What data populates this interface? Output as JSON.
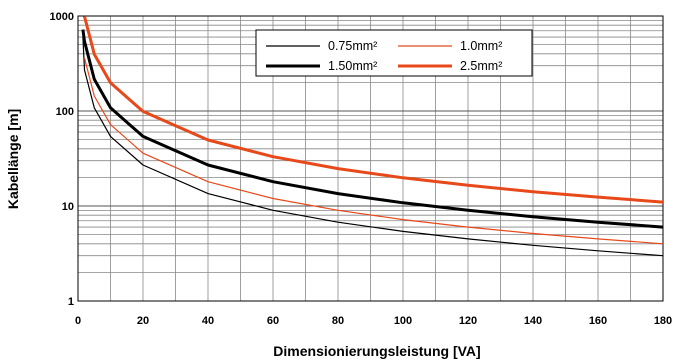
{
  "chart_data": {
    "type": "line",
    "title": "",
    "xlabel": "Dimensionierungsleistung [VA]",
    "ylabel": "Kabellänge [m]",
    "xlim": [
      0,
      180
    ],
    "ylim": [
      1,
      1000
    ],
    "y_scale": "log",
    "grid": true,
    "legend_position": "top-center",
    "x_ticks": [
      "0",
      "20",
      "40",
      "60",
      "80",
      "100",
      "120",
      "140",
      "160",
      "180"
    ],
    "y_ticks": [
      "1",
      "10",
      "100",
      "1000"
    ],
    "series": [
      {
        "name": "0.75mm²",
        "color": "#000000",
        "line_style": "thin",
        "x": [
          1.5,
          2,
          5,
          10,
          20,
          40,
          60,
          80,
          100,
          120,
          140,
          160,
          180
        ],
        "y": [
          600,
          270,
          108,
          54,
          27,
          13.5,
          9,
          6.75,
          5.4,
          4.5,
          3.86,
          3.38,
          3.0
        ]
      },
      {
        "name": "1.0mm²",
        "color": "#e8491a",
        "line_style": "thin",
        "x": [
          2,
          5,
          10,
          20,
          40,
          60,
          80,
          100,
          120,
          140,
          160,
          180
        ],
        "y": [
          360,
          144,
          72,
          36,
          18,
          12,
          9,
          7.2,
          6,
          5.14,
          4.5,
          4.0
        ]
      },
      {
        "name": "1.50mm²",
        "color": "#000000",
        "line_style": "thick",
        "x": [
          1.5,
          2,
          5,
          10,
          20,
          40,
          60,
          80,
          100,
          120,
          140,
          160,
          180
        ],
        "y": [
          720,
          540,
          216,
          108,
          54,
          27,
          18,
          13.5,
          10.8,
          9,
          7.7,
          6.75,
          6.0
        ]
      },
      {
        "name": "2.5mm²",
        "color": "#e8491a",
        "line_style": "thick",
        "x": [
          2,
          5,
          10,
          20,
          40,
          60,
          80,
          100,
          120,
          140,
          160,
          180
        ],
        "y": [
          990,
          396,
          198,
          99,
          49.5,
          33,
          24.75,
          19.8,
          16.5,
          14.1,
          12.4,
          11.0
        ]
      }
    ]
  }
}
